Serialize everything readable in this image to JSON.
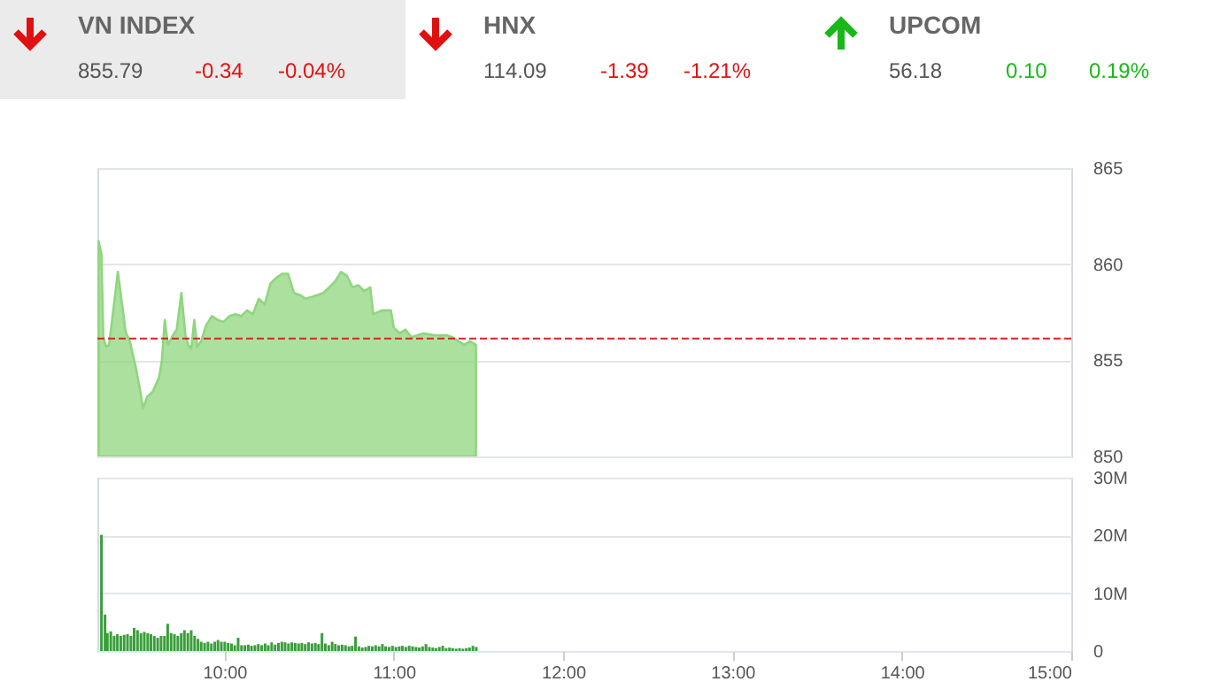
{
  "chart_data": [
    {
      "type": "other",
      "annotations": [
        "VN INDEX",
        "855.79",
        "-0.34",
        "-0.04%",
        "HNX",
        "114.09",
        "-1.39",
        "-1.21%",
        "UPCOM",
        "56.18",
        "0.10",
        "0.19%"
      ]
    },
    {
      "type": "area",
      "color": "#8fd67f",
      "xlim": [
        9.25,
        15
      ],
      "ylim": [
        850,
        865
      ],
      "yticks": [
        850,
        855,
        860,
        865
      ],
      "grid": "y",
      "tick_labels": "y",
      "ref_lines": [
        {
          "axis": "y",
          "value": 856.13,
          "color": "#e02020",
          "line_style": "dashed"
        }
      ],
      "x": [
        9.257,
        9.274,
        9.285,
        9.302,
        9.319,
        9.337,
        9.371,
        9.399,
        9.416,
        9.441,
        9.475,
        9.503,
        9.52,
        9.544,
        9.579,
        9.614,
        9.631,
        9.648,
        9.666,
        9.69,
        9.718,
        9.746,
        9.77,
        9.787,
        9.804,
        9.822,
        9.839,
        9.863,
        9.891,
        9.926,
        9.96,
        9.995,
        10.03,
        10.064,
        10.099,
        10.134,
        10.168,
        10.203,
        10.238,
        10.272,
        10.307,
        10.341,
        10.376,
        10.411,
        10.445,
        10.48,
        10.515,
        10.549,
        10.584,
        10.619,
        10.653,
        10.688,
        10.723,
        10.757,
        10.792,
        10.826,
        10.861,
        10.879,
        10.931,
        10.983,
        11.0,
        11.035,
        11.069,
        11.104,
        11.139,
        11.173,
        11.243,
        11.312,
        11.347,
        11.381,
        11.416,
        11.45,
        11.485
      ],
      "values": [
        861.2,
        860.5,
        856.2,
        855.7,
        855.8,
        857.1,
        859.6,
        857.7,
        856.5,
        856.0,
        854.7,
        853.4,
        852.5,
        853.1,
        853.4,
        854.1,
        855.0,
        857.1,
        855.8,
        856.2,
        856.6,
        858.5,
        856.3,
        855.8,
        855.6,
        857.1,
        855.7,
        856.0,
        856.8,
        857.3,
        857.1,
        857.0,
        857.3,
        857.4,
        857.3,
        857.6,
        857.4,
        858.2,
        857.9,
        859.0,
        859.3,
        859.5,
        859.5,
        858.5,
        858.4,
        858.2,
        858.3,
        858.4,
        858.5,
        858.8,
        859.1,
        859.6,
        859.4,
        858.8,
        858.9,
        858.6,
        858.8,
        857.4,
        857.6,
        857.6,
        856.7,
        856.4,
        856.6,
        856.2,
        856.3,
        856.4,
        856.3,
        856.3,
        856.2,
        856.0,
        855.8,
        856.0,
        855.8
      ]
    },
    {
      "type": "bar",
      "color": "#3a9e3a",
      "xlim": [
        9.25,
        15
      ],
      "ylim": [
        0,
        30
      ],
      "yticks": [
        0,
        {
          "value": 10,
          "label": "10M"
        },
        {
          "value": 20,
          "label": "20M"
        },
        {
          "value": 30,
          "label": "30M"
        }
      ],
      "grid": "y",
      "xticks": [
        {
          "value": 10,
          "label": "10:00"
        },
        {
          "value": 11,
          "label": "11:00"
        },
        {
          "value": 12,
          "label": "12:00"
        },
        {
          "value": 13,
          "label": "13:00"
        },
        {
          "value": 14,
          "label": "14:00"
        },
        {
          "value": 15,
          "label": "15:00"
        }
      ],
      "x": [
        9.274,
        9.295,
        9.309,
        9.329,
        9.349,
        9.368,
        9.388,
        9.408,
        9.428,
        9.448,
        9.467,
        9.487,
        9.507,
        9.527,
        9.547,
        9.566,
        9.586,
        9.606,
        9.626,
        9.646,
        9.665,
        9.685,
        9.705,
        9.725,
        9.745,
        9.764,
        9.784,
        9.804,
        9.824,
        9.844,
        9.863,
        9.883,
        9.903,
        9.923,
        9.943,
        9.962,
        9.982,
        10.002,
        10.022,
        10.042,
        10.061,
        10.081,
        10.101,
        10.121,
        10.141,
        10.16,
        10.18,
        10.2,
        10.22,
        10.24,
        10.259,
        10.279,
        10.299,
        10.319,
        10.339,
        10.358,
        10.378,
        10.398,
        10.418,
        10.438,
        10.457,
        10.477,
        10.497,
        10.517,
        10.537,
        10.556,
        10.576,
        10.596,
        10.616,
        10.636,
        10.655,
        10.675,
        10.695,
        10.715,
        10.735,
        10.754,
        10.774,
        10.794,
        10.814,
        10.834,
        10.853,
        10.873,
        10.893,
        10.913,
        10.933,
        10.952,
        10.972,
        10.992,
        11.012,
        11.032,
        11.051,
        11.071,
        11.091,
        11.111,
        11.131,
        11.15,
        11.17,
        11.19,
        11.21,
        11.23,
        11.249,
        11.269,
        11.289,
        11.309,
        11.329,
        11.348,
        11.368,
        11.388,
        11.408,
        11.428,
        11.447,
        11.467,
        11.487
      ],
      "values": [
        20.1,
        6.3,
        3.1,
        3.4,
        2.6,
        2.9,
        2.6,
        2.8,
        2.9,
        2.6,
        4.0,
        3.6,
        3.1,
        3.3,
        3.1,
        2.9,
        2.6,
        2.3,
        2.6,
        2.6,
        4.7,
        3.1,
        2.9,
        2.6,
        3.1,
        3.6,
        3.1,
        3.6,
        2.6,
        2.1,
        1.6,
        1.4,
        1.6,
        1.3,
        1.6,
        1.9,
        1.6,
        1.6,
        1.4,
        1.3,
        1.0,
        2.3,
        1.0,
        1.0,
        1.1,
        0.9,
        1.0,
        1.2,
        1.0,
        1.3,
        1.0,
        1.5,
        1.1,
        1.4,
        1.6,
        1.5,
        1.3,
        1.5,
        1.4,
        1.3,
        1.4,
        1.2,
        1.5,
        1.3,
        1.4,
        1.2,
        3.1,
        1.3,
        1.0,
        1.6,
        1.2,
        1.0,
        1.1,
        1.0,
        0.8,
        0.9,
        2.5,
        0.8,
        0.6,
        0.7,
        0.9,
        0.8,
        1.0,
        0.8,
        1.2,
        0.8,
        0.7,
        0.9,
        0.7,
        0.8,
        0.9,
        0.7,
        0.9,
        0.8,
        0.7,
        0.6,
        0.8,
        1.2,
        0.7,
        0.6,
        0.5,
        0.7,
        0.9,
        0.5,
        0.6,
        0.5,
        0.4,
        0.5,
        0.4,
        0.5,
        0.6,
        0.9,
        0.7
      ]
    }
  ]
}
